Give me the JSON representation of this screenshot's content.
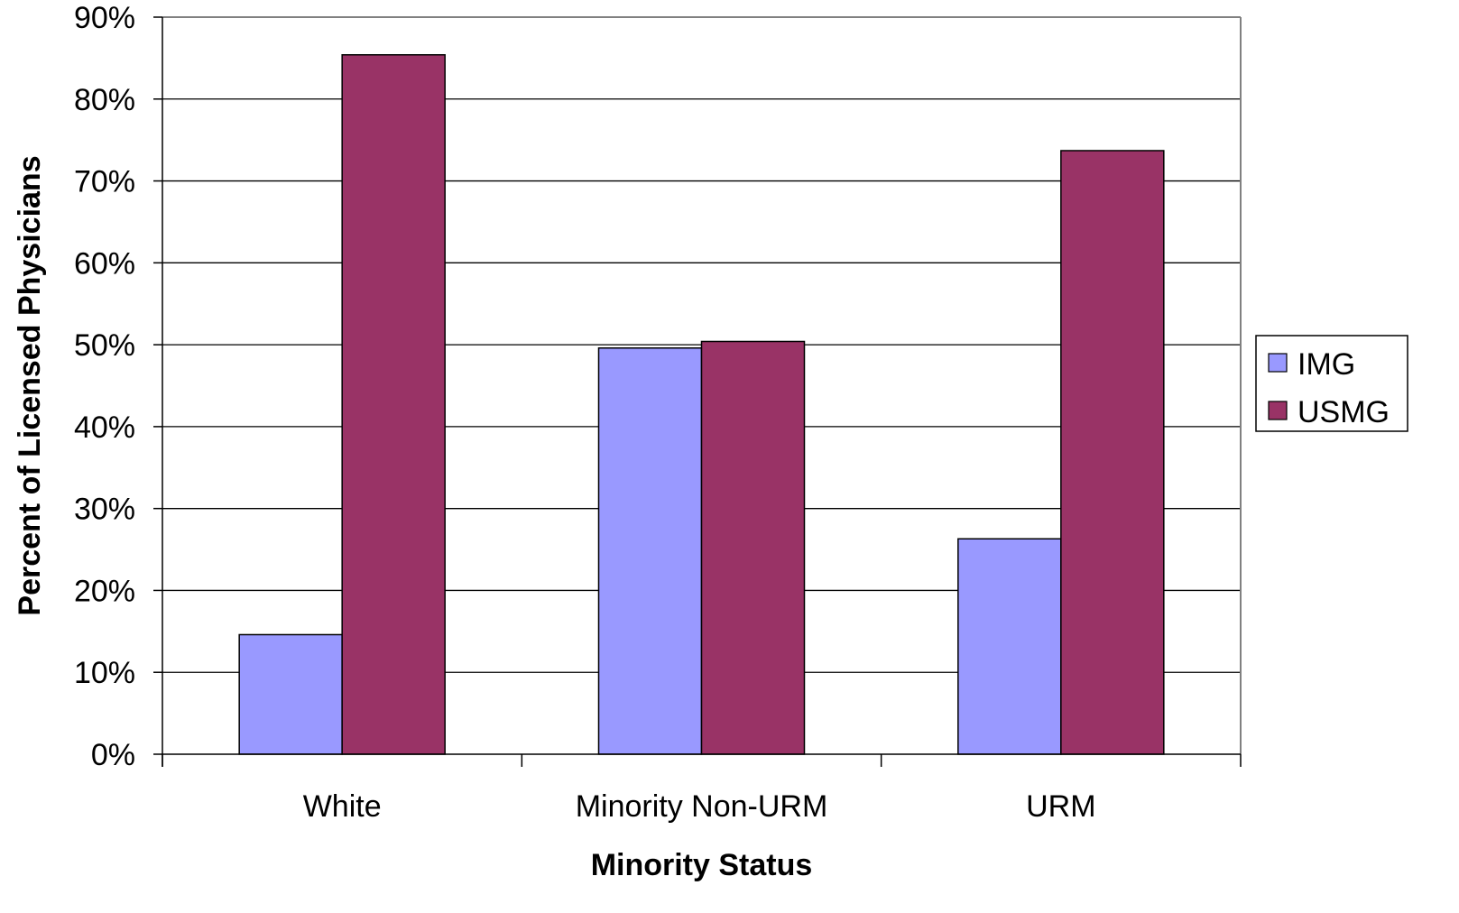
{
  "chart_data": {
    "type": "bar",
    "title": "",
    "xlabel": "Minority Status",
    "ylabel": "Percent of Licensed Physicians",
    "categories": [
      "White",
      "Minority Non-URM",
      "URM"
    ],
    "series": [
      {
        "name": "IMG",
        "values": [
          14.6,
          49.6,
          26.3
        ],
        "color": "#9999ff"
      },
      {
        "name": "USMG",
        "values": [
          85.4,
          50.4,
          73.7
        ],
        "color": "#993366"
      }
    ],
    "ylim": [
      0,
      90
    ],
    "yticks": [
      0,
      10,
      20,
      30,
      40,
      50,
      60,
      70,
      80,
      90
    ],
    "ytick_labels": [
      "0%",
      "10%",
      "20%",
      "30%",
      "40%",
      "50%",
      "60%",
      "70%",
      "80%",
      "90%"
    ],
    "grid": true,
    "legend_position": "right"
  }
}
